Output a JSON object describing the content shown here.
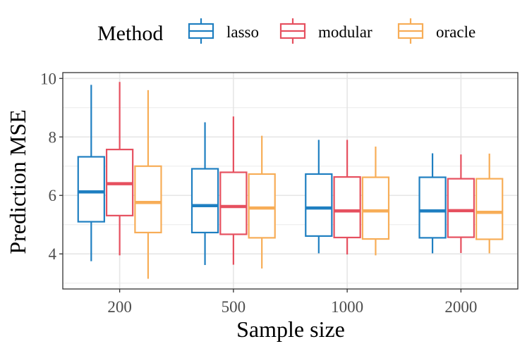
{
  "chart_data": {
    "type": "boxplot",
    "title": "",
    "xlabel": "Sample size",
    "ylabel": "Prediction MSE",
    "categories": [
      "200",
      "500",
      "1000",
      "2000"
    ],
    "yticks": [
      4,
      6,
      8,
      10
    ],
    "ylim": [
      2.8,
      10.2
    ],
    "grid": true,
    "legend": {
      "title": "Method",
      "position": "top",
      "entries": [
        "lasso",
        "modular",
        "oracle"
      ]
    },
    "series": [
      {
        "name": "lasso",
        "color": "#1f7fc1",
        "boxes": [
          {
            "whisker_low": 3.75,
            "q1": 5.1,
            "median": 6.12,
            "q3": 7.32,
            "whisker_high": 9.78
          },
          {
            "whisker_low": 3.62,
            "q1": 4.73,
            "median": 5.65,
            "q3": 6.91,
            "whisker_high": 8.5
          },
          {
            "whisker_low": 4.02,
            "q1": 4.61,
            "median": 5.57,
            "q3": 6.73,
            "whisker_high": 7.9
          },
          {
            "whisker_low": 4.02,
            "q1": 4.55,
            "median": 5.47,
            "q3": 6.62,
            "whisker_high": 7.44
          }
        ]
      },
      {
        "name": "modular",
        "color": "#e6505f",
        "boxes": [
          {
            "whisker_low": 3.95,
            "q1": 5.31,
            "median": 6.4,
            "q3": 7.57,
            "whisker_high": 9.88
          },
          {
            "whisker_low": 3.63,
            "q1": 4.67,
            "median": 5.62,
            "q3": 6.79,
            "whisker_high": 8.7
          },
          {
            "whisker_low": 3.98,
            "q1": 4.56,
            "median": 5.47,
            "q3": 6.63,
            "whisker_high": 7.9
          },
          {
            "whisker_low": 4.03,
            "q1": 4.57,
            "median": 5.48,
            "q3": 6.57,
            "whisker_high": 7.4
          }
        ]
      },
      {
        "name": "oracle",
        "color": "#f7ad57",
        "boxes": [
          {
            "whisker_low": 3.15,
            "q1": 4.73,
            "median": 5.76,
            "q3": 7.0,
            "whisker_high": 9.6
          },
          {
            "whisker_low": 3.5,
            "q1": 4.55,
            "median": 5.57,
            "q3": 6.73,
            "whisker_high": 8.04
          },
          {
            "whisker_low": 3.95,
            "q1": 4.51,
            "median": 5.47,
            "q3": 6.62,
            "whisker_high": 7.67
          },
          {
            "whisker_low": 4.02,
            "q1": 4.5,
            "median": 5.42,
            "q3": 6.57,
            "whisker_high": 7.43
          }
        ]
      }
    ]
  }
}
